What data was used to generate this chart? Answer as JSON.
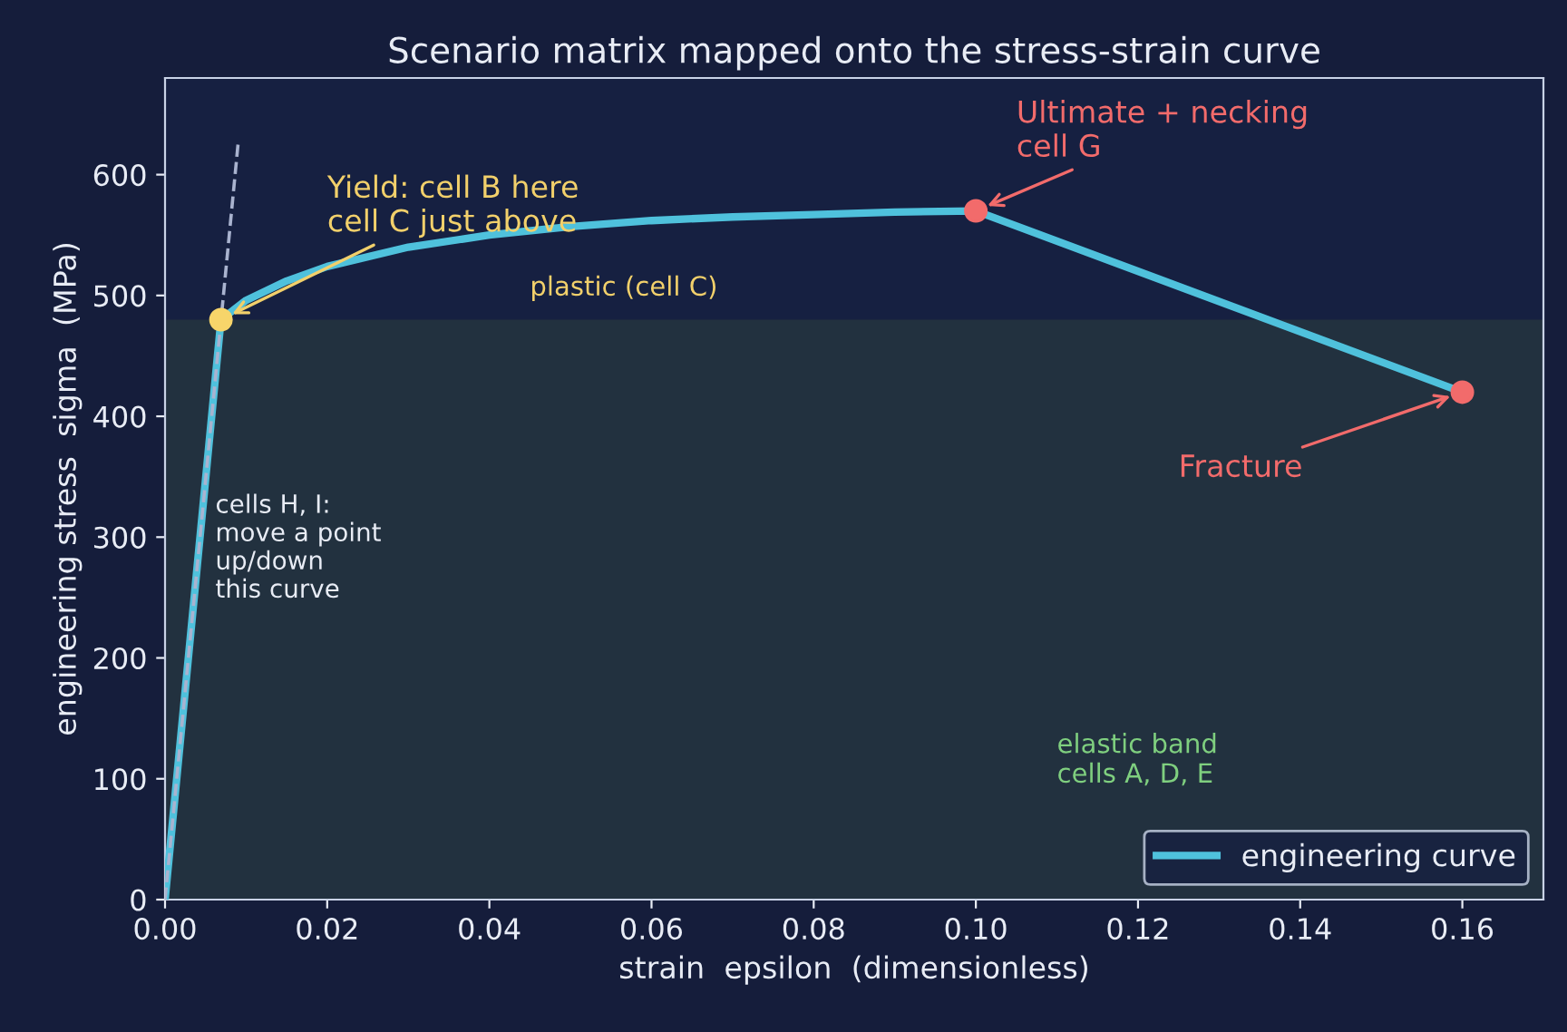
{
  "chart_data": {
    "type": "line",
    "title": "Scenario matrix mapped onto the stress-strain curve",
    "xlabel": "strain  epsilon  (dimensionless)",
    "ylabel": "engineering stress  sigma  (MPa)",
    "series": [
      {
        "name": "engineering curve",
        "color": "#4fc1dc",
        "x": [
          0,
          0.0069,
          0.01,
          0.015,
          0.02,
          0.03,
          0.04,
          0.05,
          0.06,
          0.07,
          0.08,
          0.09,
          0.1,
          0.16
        ],
        "values": [
          0,
          480,
          496,
          512,
          524,
          540,
          550,
          557,
          562,
          565,
          567,
          569,
          570,
          420
        ]
      },
      {
        "type": "line",
        "line_style": "dashed",
        "color": "#a9b3cf",
        "x": [
          0,
          0.009
        ],
        "values": [
          0,
          625
        ]
      },
      {
        "type": "scatter",
        "marker": "circle",
        "colors": [
          "#f7d56a",
          "#f26b6b",
          "#f26b6b"
        ],
        "x": [
          0.0069,
          0.1,
          0.16
        ],
        "values": [
          480,
          570,
          420
        ]
      }
    ],
    "bands": [
      {
        "axis": "y",
        "from": 0,
        "to": 480,
        "label": "elastic band\ncells A, D, E",
        "color": "#22313f"
      }
    ],
    "annotations": [
      {
        "text": "Yield: cell B here\ncell C just above",
        "x": 0.0069,
        "y": 480
      },
      "plastic (cell C)",
      {
        "text": "Ultimate + necking\ncell G",
        "x": 0.1,
        "y": 570
      },
      {
        "text": "Fracture",
        "x": 0.16,
        "y": 420
      },
      "cells H, I:\nmove a point\nup/down\nthis curve"
    ],
    "xlim": [
      0,
      0.17
    ],
    "ylim": [
      0,
      680
    ],
    "xticks": [
      {
        "value": 0,
        "label": "0.00"
      },
      {
        "value": 0.02,
        "label": "0.02"
      },
      {
        "value": 0.04,
        "label": "0.04"
      },
      {
        "value": 0.06,
        "label": "0.06"
      },
      {
        "value": 0.08,
        "label": "0.08"
      },
      {
        "value": 0.1,
        "label": "0.10"
      },
      {
        "value": 0.12,
        "label": "0.12"
      },
      {
        "value": 0.14,
        "label": "0.14"
      },
      {
        "value": 0.16,
        "label": "0.16"
      }
    ],
    "yticks": [
      0,
      100,
      200,
      300,
      400,
      500,
      600
    ],
    "grid": false,
    "legend": "bottom right"
  }
}
